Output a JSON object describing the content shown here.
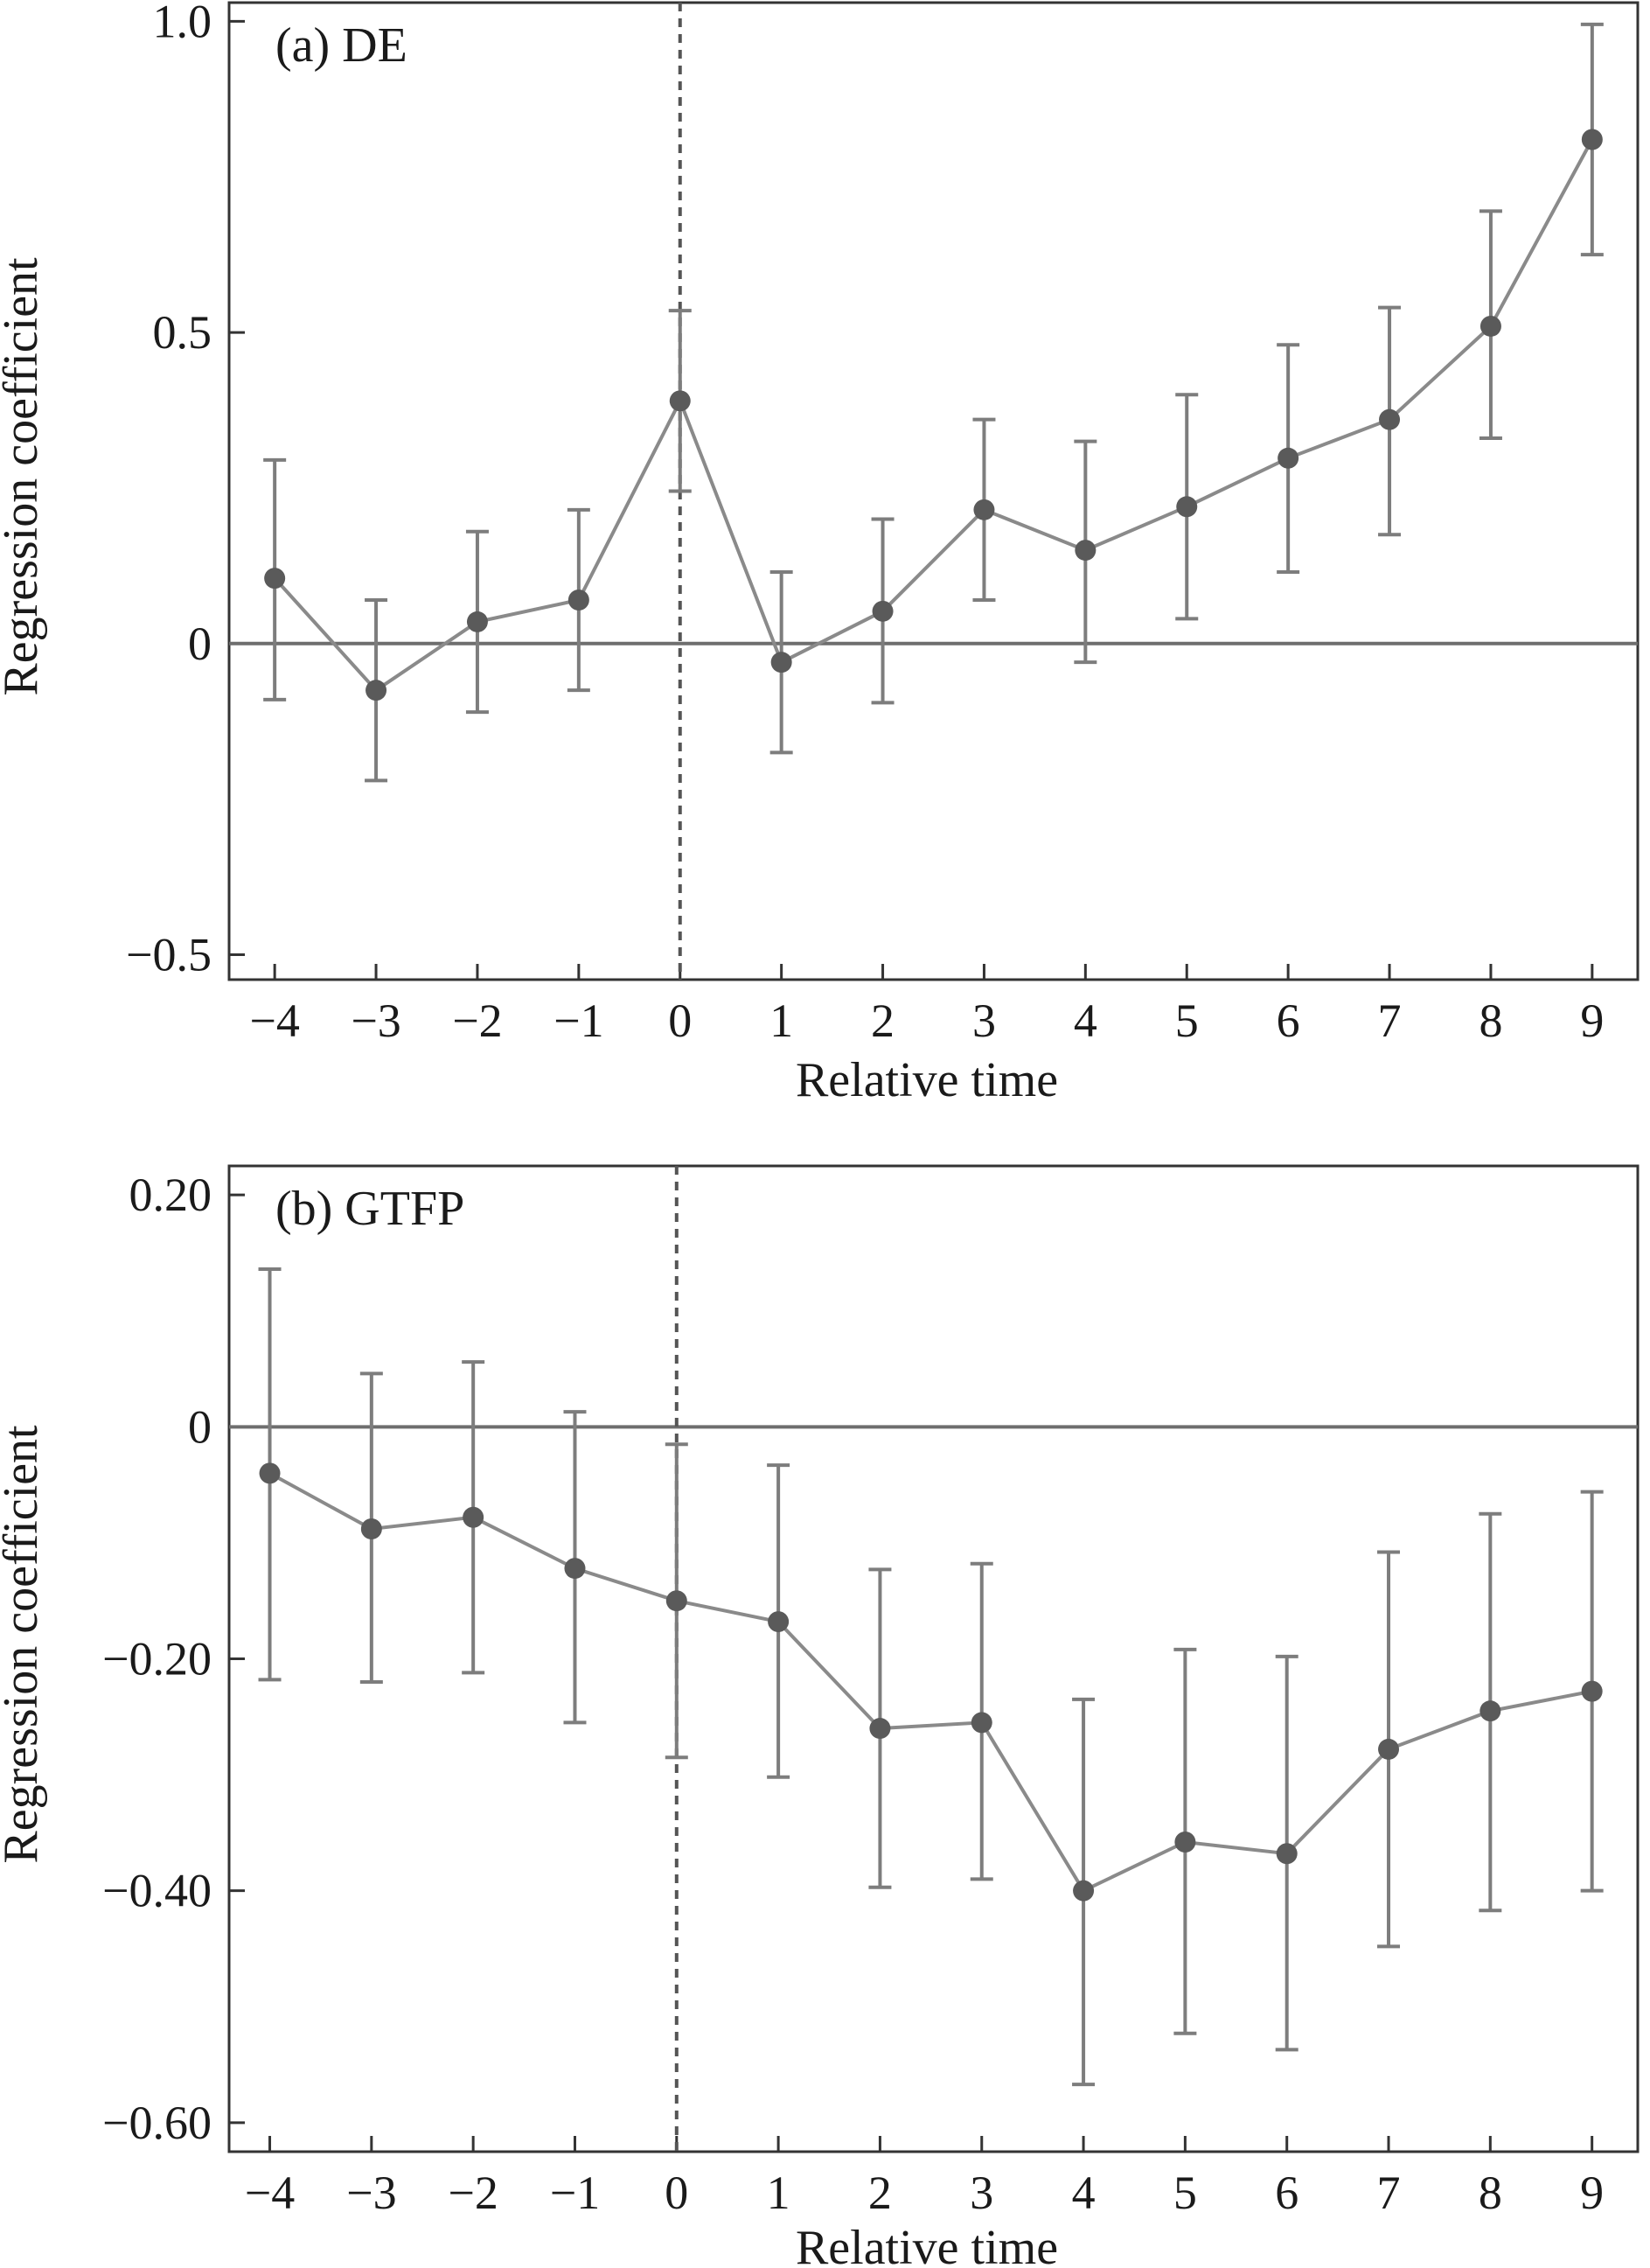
{
  "chart_data": [
    {
      "type": "line",
      "panel_label": "(a) DE",
      "xlabel": "Relative time",
      "ylabel": "Regression coefficient",
      "x": [
        -4,
        -3,
        -2,
        -1,
        0,
        1,
        2,
        3,
        4,
        5,
        6,
        7,
        8,
        9
      ],
      "x_tick_labels": [
        "−4",
        "−3",
        "−2",
        "−1",
        "0",
        "1",
        "2",
        "3",
        "4",
        "5",
        "6",
        "7",
        "8",
        "9"
      ],
      "y_ticks": [
        1.0,
        0.5,
        0,
        -0.5
      ],
      "y_tick_labels": [
        "1.0",
        "0.5",
        "0",
        "−0.5"
      ],
      "ylim": [
        -0.54,
        1.03
      ],
      "xlim": [
        -4.45,
        9.45
      ],
      "series": [
        {
          "values": [
            0.105,
            -0.075,
            0.035,
            0.07,
            0.39,
            -0.03,
            0.052,
            0.215,
            0.15,
            0.22,
            0.298,
            0.36,
            0.51,
            0.81
          ],
          "lower": [
            -0.09,
            -0.22,
            -0.11,
            -0.075,
            0.245,
            -0.175,
            -0.095,
            0.07,
            -0.03,
            0.04,
            0.115,
            0.175,
            0.33,
            0.625
          ],
          "upper": [
            0.295,
            0.07,
            0.18,
            0.215,
            0.535,
            0.115,
            0.2,
            0.36,
            0.325,
            0.4,
            0.48,
            0.54,
            0.695,
            0.995
          ]
        }
      ],
      "reference_lines": {
        "horizontal_y": 0,
        "vertical_dashed_x": 0
      },
      "grid": false,
      "colors": {
        "series": "#8a8a8a",
        "points": "#5a5a5a",
        "error_bars": "#7d7d7d"
      }
    },
    {
      "type": "line",
      "panel_label": "(b) GTFP",
      "xlabel": "Relative time",
      "ylabel": "Regression coefficient",
      "x": [
        -4,
        -3,
        -2,
        -1,
        0,
        1,
        2,
        3,
        4,
        5,
        6,
        7,
        8,
        9
      ],
      "x_tick_labels": [
        "−4",
        "−3",
        "−2",
        "−1",
        "0",
        "1",
        "2",
        "3",
        "4",
        "5",
        "6",
        "7",
        "8",
        "9"
      ],
      "y_ticks": [
        0.2,
        0,
        -0.2,
        -0.4,
        -0.6
      ],
      "y_tick_labels": [
        "0.20",
        "0",
        "−0.20",
        "−0.40",
        "−0.60"
      ],
      "ylim": [
        -0.625,
        0.225
      ],
      "xlim": [
        -4.4,
        9.45
      ],
      "series": [
        {
          "values": [
            -0.04,
            -0.088,
            -0.078,
            -0.122,
            -0.15,
            -0.168,
            -0.26,
            -0.255,
            -0.4,
            -0.358,
            -0.368,
            -0.278,
            -0.245,
            -0.228
          ],
          "lower": [
            -0.218,
            -0.22,
            -0.212,
            -0.255,
            -0.285,
            -0.302,
            -0.397,
            -0.39,
            -0.567,
            -0.523,
            -0.537,
            -0.448,
            -0.417,
            -0.4
          ],
          "upper": [
            0.136,
            0.046,
            0.056,
            0.013,
            -0.015,
            -0.033,
            -0.123,
            -0.118,
            -0.235,
            -0.192,
            -0.198,
            -0.108,
            -0.075,
            -0.056
          ]
        }
      ],
      "reference_lines": {
        "horizontal_y": 0,
        "vertical_dashed_x": 0
      },
      "grid": false,
      "colors": {
        "series": "#8a8a8a",
        "points": "#5a5a5a",
        "error_bars": "#7d7d7d"
      }
    }
  ]
}
